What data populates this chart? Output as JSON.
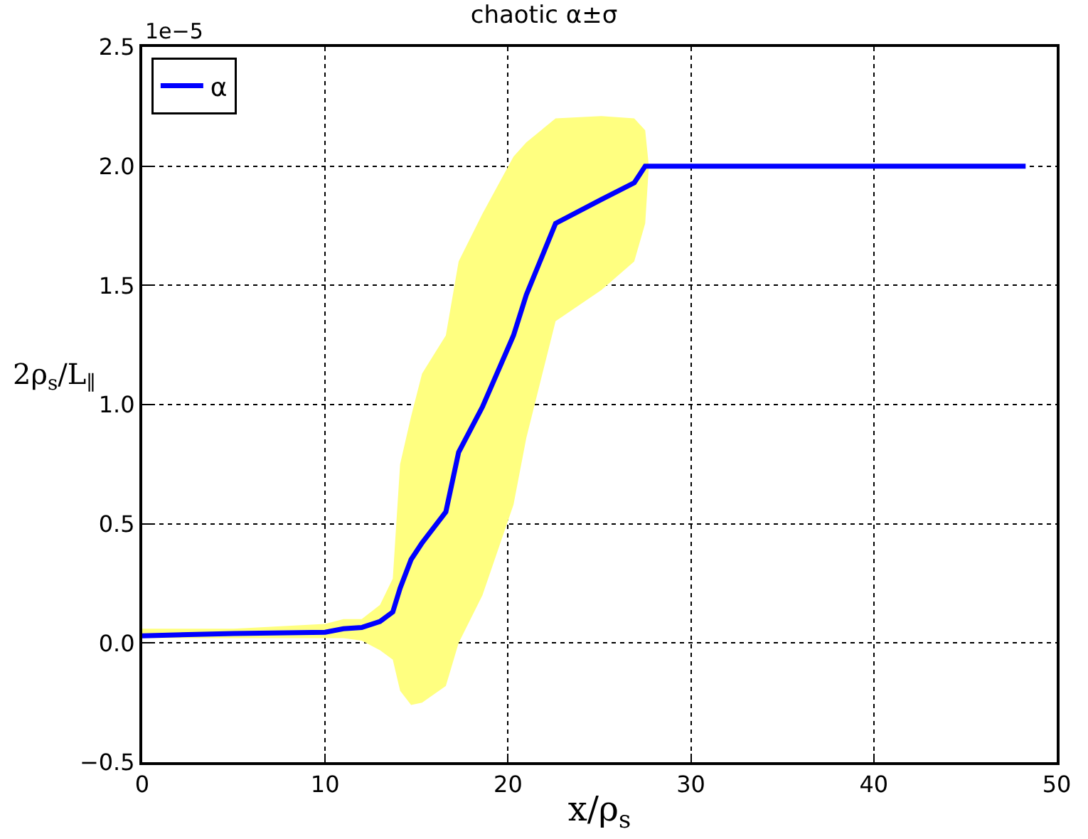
{
  "chart_data": {
    "type": "line",
    "title": "chaotic α±σ",
    "xlabel": "x/ρ$_{s}$",
    "ylabel": "2ρ$_{s}$/L$_{∥}$",
    "annotations": [
      "1e−5"
    ],
    "x": [
      0,
      5,
      10,
      11,
      12,
      13,
      13.7,
      14.1,
      14.7,
      15.3,
      16.6,
      17.3,
      18.6,
      20.3,
      21.0,
      22.6,
      25.1,
      26.9,
      27.5,
      27.7,
      30,
      40,
      48.3
    ],
    "series": [
      {
        "name": "α",
        "color": "#0000ff",
        "values": [
          0.03,
          0.04,
          0.045,
          0.06,
          0.065,
          0.09,
          0.13,
          0.23,
          0.35,
          0.42,
          0.55,
          0.8,
          0.99,
          1.29,
          1.46,
          1.76,
          1.86,
          1.93,
          2.0,
          2.0,
          2.0,
          2.0,
          2.0
        ],
        "lower": [
          0.02,
          0.02,
          0.02,
          0.02,
          0.01,
          -0.03,
          -0.07,
          -0.2,
          -0.26,
          -0.25,
          -0.18,
          0.0,
          0.2,
          0.58,
          0.86,
          1.35,
          1.48,
          1.6,
          1.76,
          2.0,
          2.0,
          2.0,
          2.0
        ],
        "upper": [
          0.06,
          0.06,
          0.08,
          0.1,
          0.1,
          0.16,
          0.27,
          0.75,
          0.95,
          1.13,
          1.29,
          1.6,
          1.8,
          2.04,
          2.1,
          2.2,
          2.21,
          2.2,
          2.15,
          2.0,
          2.0,
          2.0,
          2.0
        ]
      }
    ],
    "xlim": [
      0,
      50
    ],
    "xticks": [
      0,
      10,
      20,
      30,
      40,
      50
    ],
    "ylim": [
      -0.5,
      2.5
    ],
    "yticks": [
      {
        "value": -0.5,
        "label": "−0.5"
      },
      {
        "value": 0,
        "label": "0.0"
      },
      0.5,
      {
        "value": 1,
        "label": "1.0"
      },
      1.5,
      {
        "value": 2,
        "label": "2.0"
      },
      2.5
    ],
    "grid": true,
    "legend": "top left",
    "line_style": "solid",
    "marker": "none"
  }
}
